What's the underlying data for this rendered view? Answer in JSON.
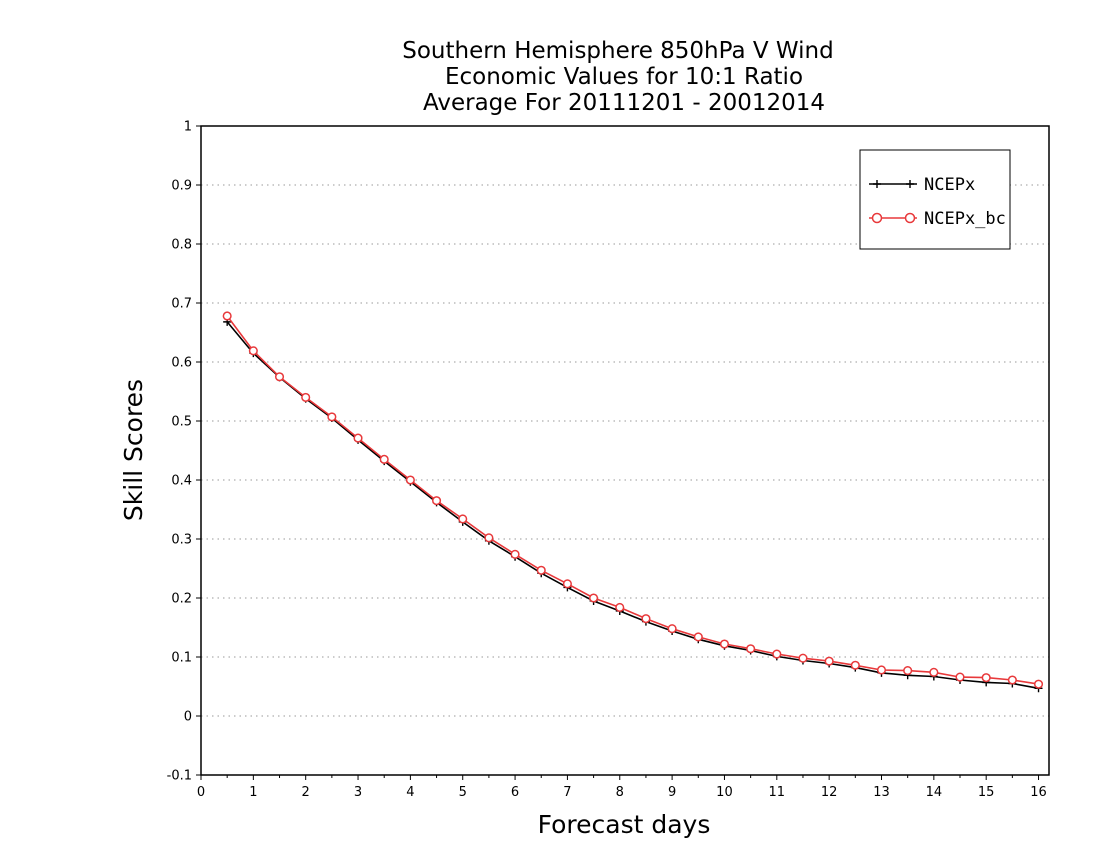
{
  "chart_data": {
    "type": "line",
    "title": [
      "Southern Hemisphere 850hPa V Wind",
      "Economic Values for 10:1 Ratio",
      "Average For 20111201 - 20012014"
    ],
    "xlabel": "Forecast days",
    "ylabel": "Skill Scores",
    "xlim": [
      0,
      16.2
    ],
    "ylim": [
      -0.1,
      1
    ],
    "xticks": [
      0,
      1,
      2,
      3,
      4,
      5,
      6,
      7,
      8,
      9,
      10,
      11,
      12,
      13,
      14,
      15,
      16
    ],
    "yticks": [
      -0.1,
      0,
      0.1,
      0.2,
      0.3,
      0.4,
      0.5,
      0.6,
      0.7,
      0.8,
      0.9,
      1
    ],
    "ytick_labels": [
      "-0.1",
      "0",
      "0.1",
      "0.2",
      "0.3",
      "0.4",
      "0.5",
      "0.6",
      "0.7",
      "0.8",
      "0.9",
      "1"
    ],
    "grid": "horizontal dotted",
    "legend_position": "top-right",
    "x": [
      0.5,
      1,
      1.5,
      2,
      2.5,
      3,
      3.5,
      4,
      4.5,
      5,
      5.5,
      6,
      6.5,
      7,
      7.5,
      8,
      8.5,
      9,
      9.5,
      10,
      10.5,
      11,
      11.5,
      12,
      12.5,
      13,
      13.5,
      14,
      14.5,
      15,
      15.5,
      16
    ],
    "series": [
      {
        "name": "NCEPx",
        "color": "#000000",
        "marker": "plus",
        "values": [
          0.668,
          0.615,
          0.574,
          0.538,
          0.505,
          0.468,
          0.432,
          0.397,
          0.362,
          0.329,
          0.297,
          0.27,
          0.242,
          0.218,
          0.195,
          0.178,
          0.16,
          0.144,
          0.13,
          0.119,
          0.111,
          0.101,
          0.094,
          0.089,
          0.082,
          0.073,
          0.069,
          0.067,
          0.061,
          0.057,
          0.055,
          0.047
        ]
      },
      {
        "name": "NCEPx_bc",
        "color": "#e8393b",
        "marker": "circle",
        "values": [
          0.678,
          0.619,
          0.575,
          0.54,
          0.507,
          0.471,
          0.435,
          0.4,
          0.365,
          0.334,
          0.302,
          0.274,
          0.247,
          0.224,
          0.2,
          0.184,
          0.165,
          0.148,
          0.134,
          0.122,
          0.114,
          0.105,
          0.098,
          0.093,
          0.086,
          0.078,
          0.077,
          0.074,
          0.066,
          0.065,
          0.061,
          0.054
        ]
      }
    ]
  }
}
